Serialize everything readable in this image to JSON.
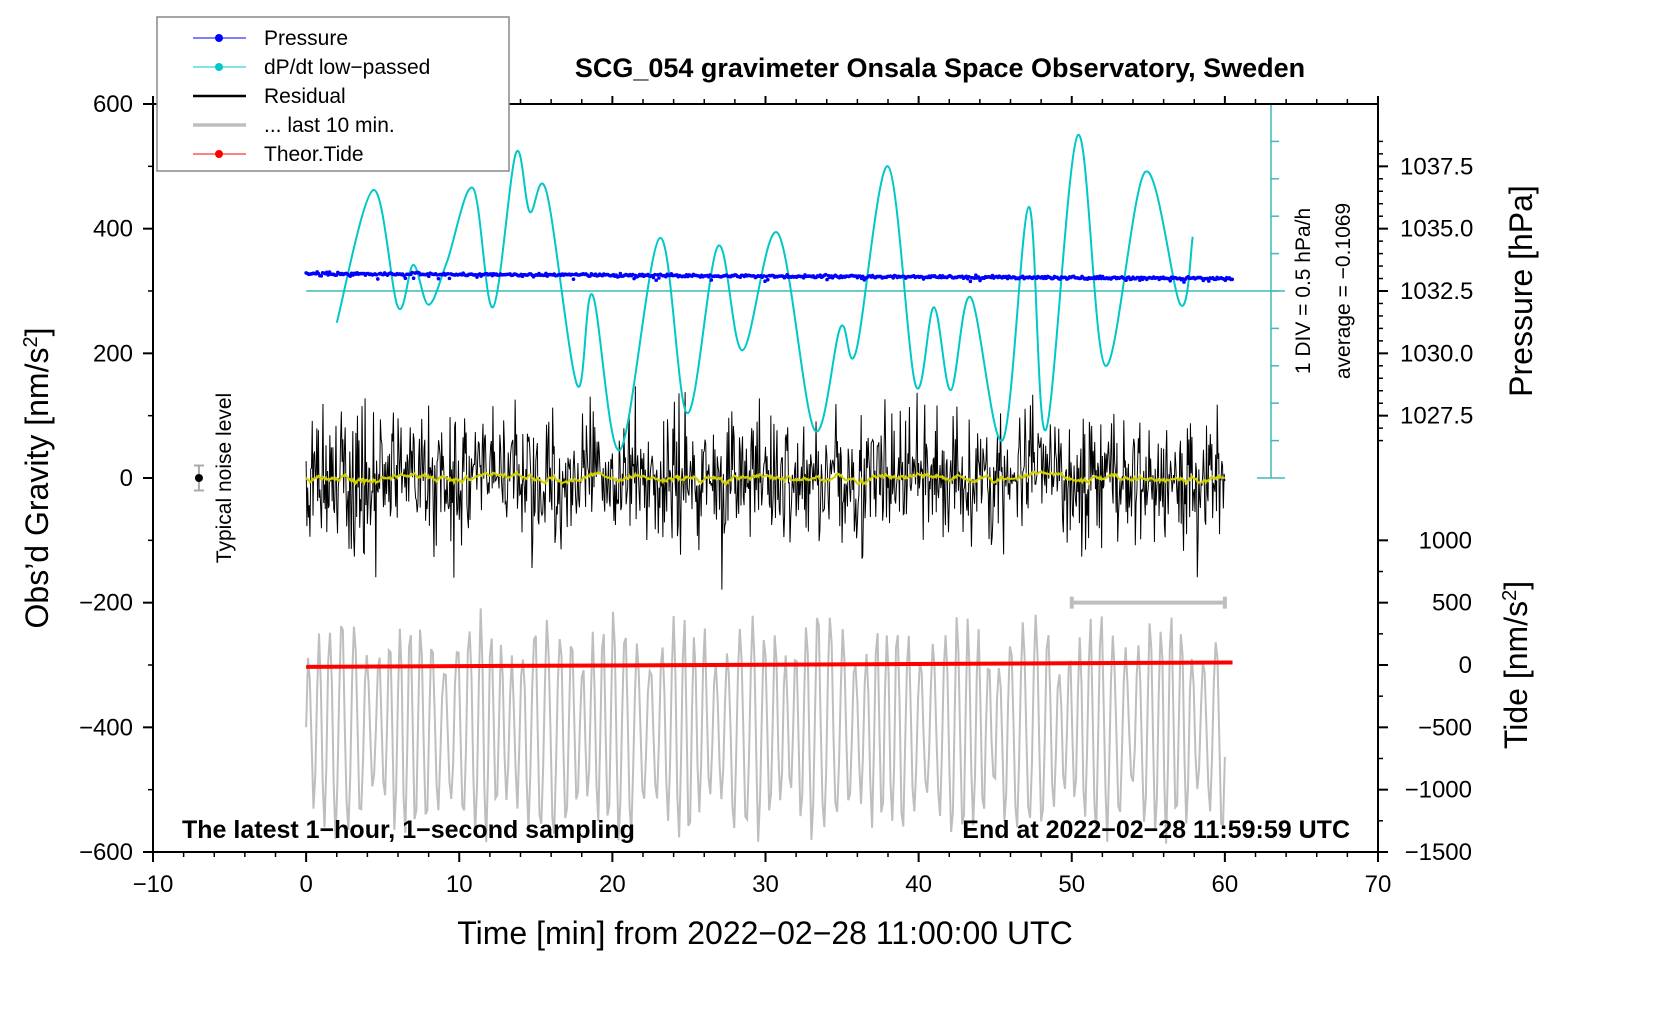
{
  "chart_data": {
    "type": "line",
    "title": "SCG_054 gravimeter Onsala Space Observatory, Sweden",
    "xlabel": "Time [min] from 2022−02−28 11:00:00 UTC",
    "ylabel_left": "Obs’d Gravity [nm/s",
    "ylabel_left_sup": "2",
    "ylabel_left_end": "]",
    "ylabel_right_pressure": "Pressure [hPa]",
    "ylabel_right_tide": "Tide [nm/s",
    "ylabel_right_tide_sup": "2",
    "ylabel_right_tide_end": "]",
    "xlim": [
      -10,
      70
    ],
    "ylim": [
      -600,
      600
    ],
    "x_ticks": [
      "−10",
      "0",
      "10",
      "20",
      "30",
      "40",
      "50",
      "60",
      "70"
    ],
    "x_tick_values": [
      -10,
      0,
      10,
      20,
      30,
      40,
      50,
      60,
      70
    ],
    "y_ticks": [
      "600",
      "400",
      "200",
      "0",
      "−200",
      "−400",
      "−600"
    ],
    "y_tick_values": [
      600,
      400,
      200,
      0,
      -200,
      -400,
      -600
    ],
    "pressure_ticks": [
      "1037.5",
      "1035.0",
      "1032.5",
      "1030.0",
      "1027.5"
    ],
    "pressure_tick_values": [
      1037.5,
      1035.0,
      1032.5,
      1030.0,
      1027.5
    ],
    "tide_ticks": [
      "1000",
      "500",
      "0",
      "−500",
      "−1000",
      "−1500"
    ],
    "tide_tick_values": [
      1000,
      500,
      0,
      -500,
      -1000,
      -1500
    ],
    "annotation_left": "The latest 1−hour, 1−second sampling",
    "annotation_right": "End at 2022−02−28 11:59:59 UTC",
    "noise_label": "Typical noise level",
    "dpdt_scale": "1 DIV = 0.5 hPa/h",
    "dpdt_average": "average = −0.1069",
    "legend": {
      "placement": "top-left",
      "items": [
        {
          "label": "Pressure",
          "color": "#0000ff",
          "marker": true
        },
        {
          "label": "dP/dt low−passed",
          "color": "#00c8c8",
          "marker": true
        },
        {
          "label": "Residual",
          "color": "#000000",
          "marker": false
        },
        {
          "label": "... last 10 min.",
          "color": "#bebebe",
          "marker": false
        },
        {
          "label": "Theor.Tide",
          "color": "#ff0000",
          "marker": true
        }
      ]
    },
    "series": [
      {
        "name": "Pressure",
        "units": "hPa",
        "x_range": [
          0,
          60.5
        ],
        "start": 1033.2,
        "end": 1033.0
      },
      {
        "name": "dP/dt low-passed",
        "units": "gravity-axis",
        "baseline": 300,
        "x": [
          2.0,
          4.4,
          6.0,
          7.0,
          8.0,
          9.2,
          10.9,
          12.2,
          13.7,
          14.6,
          15.7,
          17.7,
          18.7,
          20.5,
          23.1,
          24.9,
          26.9,
          28.5,
          30.8,
          33.2,
          34.9,
          35.9,
          38.0,
          39.8,
          41.0,
          42.1,
          43.4,
          45.5,
          47.2,
          48.3,
          50.4,
          52.2,
          54.8,
          57.1,
          57.9
        ],
        "y": [
          249,
          462,
          274,
          342,
          278,
          347,
          465,
          274,
          521,
          427,
          459,
          149,
          294,
          45,
          385,
          104,
          372,
          205,
          393,
          77,
          242,
          202,
          500,
          149,
          274,
          141,
          290,
          61,
          435,
          77,
          550,
          180,
          491,
          278,
          387
        ]
      },
      {
        "name": "Residual",
        "units": "nm/s2",
        "x_range": [
          0,
          60
        ],
        "center": 0,
        "approx_amplitude": 150
      },
      {
        "name": "... last 10 min.",
        "units": "gravity-axis",
        "x_range": [
          0,
          60
        ],
        "center": -400,
        "approx_amplitude": 150
      },
      {
        "name": "Theor.Tide",
        "units": "nm/s2",
        "x": [
          0,
          60.5
        ],
        "y": [
          -15,
          20
        ]
      }
    ],
    "noise_level": {
      "x": -7,
      "y": 0,
      "error": 20
    },
    "last10_bar": {
      "x": [
        50,
        60
      ],
      "y": -200
    }
  }
}
